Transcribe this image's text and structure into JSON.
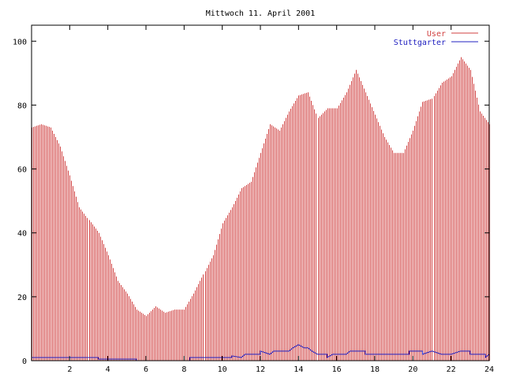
{
  "chart_data": {
    "type": "bar",
    "title": "Mittwoch 11. April 2001",
    "xlabel": "",
    "ylabel": "",
    "xlim": [
      0,
      24
    ],
    "ylim": [
      0,
      105
    ],
    "x_ticks": [
      "2",
      "4",
      "6",
      "8",
      "10",
      "12",
      "14",
      "16",
      "18",
      "20",
      "22",
      "24"
    ],
    "y_ticks": [
      "0",
      "20",
      "40",
      "60",
      "80",
      "100"
    ],
    "grid": false,
    "legend_position": "top-right",
    "colors": {
      "user": "#d04040",
      "stuttgarter": "#2020c0",
      "axis": "#000000"
    },
    "series": [
      {
        "name": "User",
        "style": "impulses",
        "points": [
          [
            0.0,
            73
          ],
          [
            0.5,
            74
          ],
          [
            1.0,
            73
          ],
          [
            1.5,
            67
          ],
          [
            2.0,
            58
          ],
          [
            2.5,
            48
          ],
          [
            3.0,
            44
          ],
          [
            3.5,
            40
          ],
          [
            4.0,
            33
          ],
          [
            4.5,
            25
          ],
          [
            5.0,
            21
          ],
          [
            5.5,
            16
          ],
          [
            6.0,
            14
          ],
          [
            6.5,
            17
          ],
          [
            7.0,
            15
          ],
          [
            7.5,
            16
          ],
          [
            8.0,
            16
          ],
          [
            8.5,
            21
          ],
          [
            9.0,
            27
          ],
          [
            9.5,
            33
          ],
          [
            10.0,
            43
          ],
          [
            10.5,
            48
          ],
          [
            11.0,
            54
          ],
          [
            11.5,
            56
          ],
          [
            12.0,
            65
          ],
          [
            12.5,
            74
          ],
          [
            13.0,
            72
          ],
          [
            13.5,
            78
          ],
          [
            14.0,
            83
          ],
          [
            14.5,
            84
          ],
          [
            15.0,
            76
          ],
          [
            15.5,
            79
          ],
          [
            16.0,
            79
          ],
          [
            16.5,
            84
          ],
          [
            17.0,
            91
          ],
          [
            17.5,
            84
          ],
          [
            18.0,
            77
          ],
          [
            18.5,
            70
          ],
          [
            19.0,
            65
          ],
          [
            19.5,
            65
          ],
          [
            20.0,
            72
          ],
          [
            20.5,
            81
          ],
          [
            21.0,
            82
          ],
          [
            21.5,
            87
          ],
          [
            22.0,
            89
          ],
          [
            22.5,
            95
          ],
          [
            23.0,
            91
          ],
          [
            23.5,
            78
          ],
          [
            24.0,
            74
          ]
        ]
      },
      {
        "name": "Stuttgarter",
        "style": "line",
        "points": [
          [
            0.0,
            1
          ],
          [
            3.5,
            1
          ],
          [
            3.5,
            0.5
          ],
          [
            5.5,
            0.5
          ],
          [
            5.5,
            0
          ],
          [
            8.3,
            0
          ],
          [
            8.3,
            1
          ],
          [
            10.5,
            1
          ],
          [
            10.5,
            1.5
          ],
          [
            11.0,
            1
          ],
          [
            11.2,
            2
          ],
          [
            12.0,
            2
          ],
          [
            12.0,
            3
          ],
          [
            12.5,
            2
          ],
          [
            12.7,
            3
          ],
          [
            13.5,
            3
          ],
          [
            13.7,
            4
          ],
          [
            14.0,
            5
          ],
          [
            14.3,
            4
          ],
          [
            14.5,
            4
          ],
          [
            14.7,
            3
          ],
          [
            15.0,
            2
          ],
          [
            15.5,
            2
          ],
          [
            15.5,
            1
          ],
          [
            15.8,
            2
          ],
          [
            16.0,
            2
          ],
          [
            16.5,
            2
          ],
          [
            16.7,
            3
          ],
          [
            17.5,
            3
          ],
          [
            17.5,
            2
          ],
          [
            19.8,
            2
          ],
          [
            19.8,
            3
          ],
          [
            20.5,
            3
          ],
          [
            20.5,
            2
          ],
          [
            21.0,
            3
          ],
          [
            21.5,
            2
          ],
          [
            22.0,
            2
          ],
          [
            22.5,
            3
          ],
          [
            23.0,
            3
          ],
          [
            23.0,
            2
          ],
          [
            23.8,
            2
          ],
          [
            23.8,
            1
          ],
          [
            24.0,
            2
          ]
        ]
      }
    ]
  }
}
